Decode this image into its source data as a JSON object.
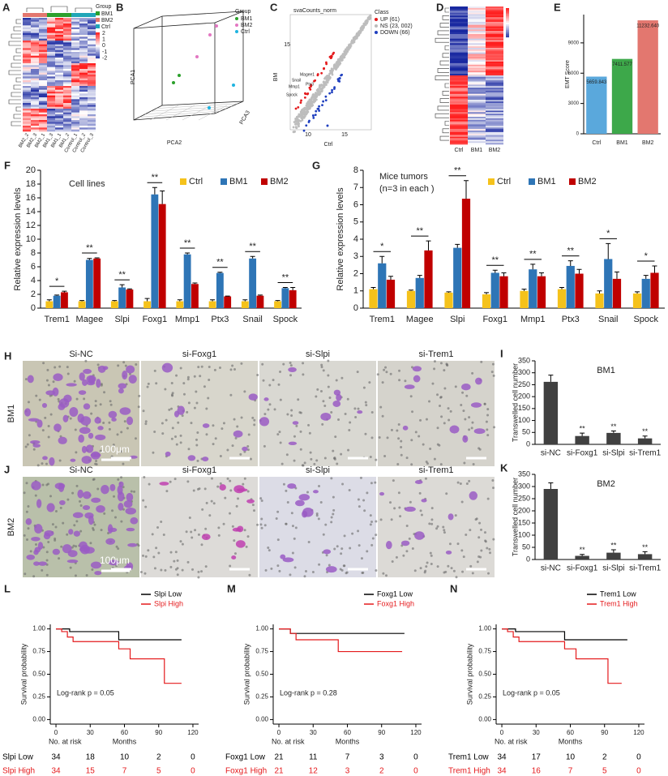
{
  "chart_data": [
    {
      "type": "bar",
      "panel": "E",
      "ylabel": "EMT Score",
      "categories": [
        "Ctrl",
        "BM1",
        "BM2"
      ],
      "values": [
        5659.843,
        7411.577,
        11232.64
      ],
      "value_labels": [
        "5659.843",
        "7411.577",
        "11232.640"
      ],
      "colors": [
        "#5aa8dc",
        "#3da84a",
        "#e3776f"
      ],
      "ylim": [
        0,
        11800
      ],
      "yticks": [
        0,
        3000,
        6000,
        9000
      ]
    },
    {
      "type": "grouped_bar",
      "panel": "F",
      "ylabel": "Relative expression levels",
      "annotations": [
        "Cell lines"
      ],
      "categories": [
        "Trem1",
        "Magee",
        "Slpi",
        "Foxg1",
        "Mmp1",
        "Ptx3",
        "Snail",
        "Spock"
      ],
      "series": [
        {
          "name": "Ctrl",
          "color": "#f5c21b",
          "values": [
            1,
            1,
            1,
            1,
            1,
            1,
            1,
            1
          ],
          "errors": [
            0.2,
            0.1,
            0.1,
            0.4,
            0.2,
            0.2,
            0.2,
            0.1
          ]
        },
        {
          "name": "BM1",
          "color": "#2e75b6",
          "values": [
            1.8,
            7,
            3,
            16.5,
            7.8,
            5.1,
            7.2,
            2.9
          ],
          "errors": [
            0.1,
            0.2,
            0.4,
            1,
            0.2,
            0.1,
            0.3,
            0.1
          ]
        },
        {
          "name": "BM2",
          "color": "#c00000",
          "values": [
            2.3,
            7.2,
            2.7,
            15.1,
            3.5,
            1.7,
            1.8,
            2.6
          ],
          "errors": [
            0.15,
            0.1,
            0.1,
            1.9,
            0.15,
            0.05,
            0.1,
            0.4
          ]
        }
      ],
      "significance": [
        "*",
        "**",
        "**",
        "**",
        "**",
        "**",
        "**",
        "**"
      ],
      "ylim": [
        0,
        20
      ],
      "yticks": [
        0,
        2,
        4,
        6,
        8,
        10,
        12,
        14,
        16,
        18,
        20
      ]
    },
    {
      "type": "grouped_bar",
      "panel": "G",
      "ylabel": "Relative expression levels",
      "annotations": [
        "Mice tumors",
        "(n=3 in each )"
      ],
      "categories": [
        "Trem1",
        "Magee",
        "Slpi",
        "Foxg1",
        "Mmp1",
        "Ptx3",
        "Snail",
        "Spock"
      ],
      "series": [
        {
          "name": "Ctrl",
          "color": "#f5c21b",
          "values": [
            1.1,
            1,
            0.9,
            0.8,
            1,
            1.1,
            0.85,
            0.85
          ],
          "errors": [
            0.1,
            0.05,
            0.05,
            0.1,
            0.1,
            0.1,
            0.15,
            0.1
          ]
        },
        {
          "name": "BM1",
          "color": "#2e75b6",
          "values": [
            2.6,
            1.75,
            3.5,
            2.05,
            2.25,
            2.45,
            2.85,
            1.7
          ],
          "errors": [
            0.4,
            0.15,
            0.2,
            0.15,
            0.3,
            0.3,
            0.9,
            0.2
          ]
        },
        {
          "name": "BM2",
          "color": "#c00000",
          "values": [
            1.65,
            3.35,
            6.35,
            1.85,
            1.85,
            2,
            1.7,
            2.05
          ],
          "errors": [
            0.2,
            0.55,
            1.05,
            0.2,
            0.2,
            0.25,
            0.4,
            0.4
          ]
        }
      ],
      "significance": [
        "*",
        "**",
        "**",
        "**",
        "**",
        "**",
        "*",
        "*"
      ],
      "ylim": [
        0,
        8
      ],
      "yticks": [
        0,
        1,
        2,
        3,
        4,
        5,
        6,
        7,
        8
      ]
    },
    {
      "type": "bar",
      "panel": "I",
      "title": "BM1",
      "ylabel": "Transwelled cell number",
      "categories": [
        "si-NC",
        "si-Foxg1",
        "si-Slpi",
        "si-Trem1"
      ],
      "values": [
        262,
        35,
        48,
        25
      ],
      "errors": [
        28,
        12,
        8,
        10
      ],
      "significance": [
        null,
        "**",
        "**",
        "**"
      ],
      "color": "#404040",
      "ylim": [
        0,
        350
      ],
      "yticks": [
        0,
        50,
        100,
        150,
        200,
        250,
        300,
        350
      ]
    },
    {
      "type": "bar",
      "panel": "K",
      "title": "BM2",
      "ylabel": "Transwelled cell number",
      "categories": [
        "si-NC",
        "si-Foxg1",
        "si-Slpi",
        "si-Trem1"
      ],
      "values": [
        290,
        15,
        28,
        22
      ],
      "errors": [
        25,
        6,
        12,
        10
      ],
      "significance": [
        null,
        "**",
        "**",
        "**"
      ],
      "color": "#404040",
      "ylim": [
        0,
        350
      ],
      "yticks": [
        0,
        50,
        100,
        150,
        200,
        250,
        300,
        350
      ]
    },
    {
      "type": "km",
      "panel": "L",
      "ylabel": "Survival probability",
      "xlabel": "Months",
      "annotation": "Log-rank p = 0.05",
      "xlim": [
        -5,
        125
      ],
      "xticks": [
        0,
        30,
        60,
        90,
        120
      ],
      "ylim": [
        -0.05,
        1.05
      ],
      "yticks": [
        {
          "value": 0,
          "label": "0.00"
        },
        {
          "value": 0.25,
          "label": "0.25"
        },
        {
          "value": 0.5,
          "label": "0.50"
        },
        {
          "value": 0.75,
          "label": "0.75"
        },
        {
          "value": 1,
          "label": "1.00"
        }
      ],
      "series": [
        {
          "name": "Slpi Low",
          "color": "#000000",
          "x": [
            0,
            12,
            55,
            110
          ],
          "y": [
            1,
            0.97,
            0.88,
            0.88
          ]
        },
        {
          "name": "Slpi High",
          "color": "#e41a1c",
          "x": [
            0,
            5,
            10,
            15,
            55,
            65,
            95,
            110
          ],
          "y": [
            1,
            0.97,
            0.91,
            0.86,
            0.78,
            0.67,
            0.4,
            0.4
          ]
        }
      ],
      "risk_table": {
        "title": "No. at risk",
        "rows": [
          {
            "name": "Slpi Low",
            "color": "#000000",
            "counts": [
              34,
              18,
              10,
              2,
              0
            ]
          },
          {
            "name": "Slpi High",
            "color": "#e41a1c",
            "counts": [
              34,
              15,
              7,
              5,
              0
            ]
          }
        ]
      }
    },
    {
      "type": "km",
      "panel": "M",
      "ylabel": "Survival probability",
      "xlabel": "Months",
      "annotation": "Log-rank p = 0.28",
      "xlim": [
        -5,
        125
      ],
      "xticks": [
        0,
        30,
        60,
        90,
        120
      ],
      "ylim": [
        -0.05,
        1.05
      ],
      "yticks": [
        {
          "value": 0,
          "label": "0.00"
        },
        {
          "value": 0.25,
          "label": "0.25"
        },
        {
          "value": 0.5,
          "label": "0.50"
        },
        {
          "value": 0.75,
          "label": "0.75"
        },
        {
          "value": 1,
          "label": "1.00"
        }
      ],
      "series": [
        {
          "name": "Foxg1 Low",
          "color": "#000000",
          "x": [
            0,
            10,
            110
          ],
          "y": [
            1,
            0.95,
            0.95
          ]
        },
        {
          "name": "Foxg1 High",
          "color": "#e41a1c",
          "x": [
            0,
            10,
            15,
            52,
            108
          ],
          "y": [
            1,
            0.95,
            0.88,
            0.75,
            0.75
          ]
        }
      ],
      "risk_table": {
        "title": "No. at risk",
        "rows": [
          {
            "name": "Foxg1 Low",
            "color": "#000000",
            "counts": [
              21,
              11,
              7,
              3,
              0
            ]
          },
          {
            "name": "Foxg1 High",
            "color": "#e41a1c",
            "counts": [
              21,
              12,
              3,
              2,
              0
            ]
          }
        ]
      }
    },
    {
      "type": "km",
      "panel": "N",
      "ylabel": "Survival probability",
      "xlabel": "Months",
      "annotation": "Log-rank p = 0.05",
      "xlim": [
        -5,
        125
      ],
      "xticks": [
        0,
        30,
        60,
        90,
        120
      ],
      "ylim": [
        -0.05,
        1.05
      ],
      "yticks": [
        {
          "value": 0,
          "label": "0.00"
        },
        {
          "value": 0.25,
          "label": "0.25"
        },
        {
          "value": 0.5,
          "label": "0.50"
        },
        {
          "value": 0.75,
          "label": "0.75"
        },
        {
          "value": 1,
          "label": "1.00"
        }
      ],
      "series": [
        {
          "name": "Trem1 Low",
          "color": "#000000",
          "x": [
            0,
            12,
            55,
            110
          ],
          "y": [
            1,
            0.97,
            0.88,
            0.88
          ]
        },
        {
          "name": "Trem1 High",
          "color": "#e41a1c",
          "x": [
            0,
            5,
            10,
            15,
            55,
            65,
            93,
            105
          ],
          "y": [
            1,
            0.97,
            0.91,
            0.86,
            0.78,
            0.67,
            0.4,
            0.4
          ]
        }
      ],
      "risk_table": {
        "title": "No. at risk",
        "rows": [
          {
            "name": "Trem1 Low",
            "color": "#000000",
            "counts": [
              34,
              17,
              10,
              2,
              0
            ]
          },
          {
            "name": "Trem1 High",
            "color": "#e41a1c",
            "counts": [
              34,
              16,
              7,
              5,
              0
            ]
          }
        ]
      }
    }
  ],
  "heatmap_a": {
    "panel": "A",
    "legend_title": "Group",
    "groups": [
      "BM1",
      "BM2",
      "Ctrl"
    ],
    "scale_ticks": [
      "2",
      "1",
      "0",
      "-1",
      "-2"
    ],
    "columns": [
      "BM2_2",
      "BM2_3",
      "BM2_1",
      "BM1_3",
      "BM1_1",
      "BM1_2",
      "Control_1",
      "Control_2",
      "Control_3"
    ]
  },
  "pca_b": {
    "panel": "B",
    "legend_title": "Group",
    "groups": [
      "BM1",
      "BM2",
      "Ctrl"
    ],
    "axes": [
      "PCA1",
      "PCA2",
      "PCA3"
    ]
  },
  "scatter_c": {
    "panel": "C",
    "title": "svaCounts_norm",
    "ylabel": "BM",
    "xlabel": "Ctrl",
    "legend_title": "Class",
    "classes": [
      "UP (61)",
      "NS (23, 002)",
      "DOWN (66)"
    ],
    "genes": [
      "Magee1",
      "Snail",
      "Mmp1",
      "Ptx3",
      "Spock"
    ],
    "ticks": [
      "5",
      "10",
      "15"
    ]
  },
  "heatmap_d": {
    "panel": "D",
    "columns": [
      "Ctrl",
      "BM1",
      "BM2"
    ]
  },
  "images_h": {
    "panel": "H",
    "row_label": "BM1",
    "columns": [
      "Si-NC",
      "si-Foxg1",
      "si-Slpi",
      "si-Trem1"
    ],
    "scale_bar": "100μm"
  },
  "images_j": {
    "panel": "J",
    "row_label": "BM2",
    "columns": [
      "Si-NC",
      "si-Foxg1",
      "si-Slpi",
      "si-Trem1"
    ],
    "scale_bar": "100μm"
  }
}
